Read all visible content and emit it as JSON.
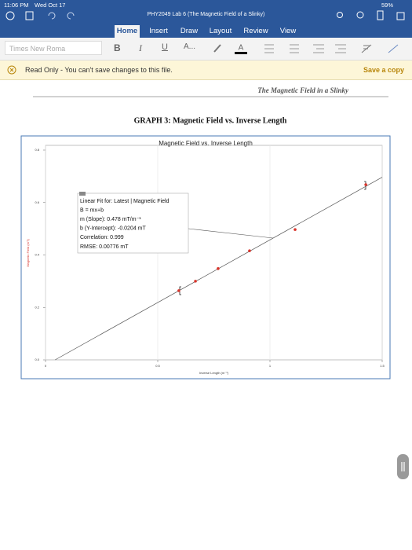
{
  "status": {
    "time": "11:06 PM",
    "date": "Wed Oct 17",
    "battery": "59%"
  },
  "app": {
    "title": "PHY2049 Lab 6 (The Magnetic Field of a Slinky)",
    "tabs": [
      "Home",
      "Insert",
      "Draw",
      "Layout",
      "Review",
      "View"
    ],
    "font": "Times New Roma",
    "banner": {
      "message": "Read Only - You can't save changes to this file.",
      "action": "Save a copy"
    }
  },
  "document": {
    "header": "The Magnetic Field in a Slinky",
    "heading": "GRAPH 3: Magnetic Field vs. Inverse Length",
    "chart": {
      "type": "scatter",
      "title": "Magnetic Field vs. Inverse Length",
      "x_label": "Inverse Length (m⁻¹)",
      "y_label": "Magnetic Field (mT)",
      "x": [
        0.594,
        0.668,
        0.769,
        0.909,
        1.112,
        1.427
      ],
      "values": [
        0.264,
        0.3,
        0.348,
        0.416,
        0.497,
        0.668
      ],
      "color": "#d9342b",
      "fit": {
        "slope": 0.478,
        "intercept": -0.0204,
        "color": "#555555"
      },
      "annotation": [
        "Linear Fit for: Latest | Magnetic Field",
        "B = mx+b",
        "m (Slope): 0.478 mT/m⁻¹",
        "b (Y-Intercept): -0.0204 mT",
        "Correlation: 0.999",
        "RMSE: 0.00776 mT"
      ],
      "xlim": [
        0,
        1.5
      ],
      "ylim": [
        0,
        0.8
      ],
      "xticks": [
        0,
        0.5,
        1,
        1.5
      ],
      "yticks": [
        {
          "value": 0,
          "label": "0.0"
        },
        {
          "value": 0.2,
          "label": "0.2"
        },
        {
          "value": 0.4,
          "label": "0.4"
        },
        {
          "value": 0.6,
          "label": "0.6"
        },
        {
          "value": 0.8,
          "label": "0.8"
        }
      ],
      "grid": true
    }
  }
}
